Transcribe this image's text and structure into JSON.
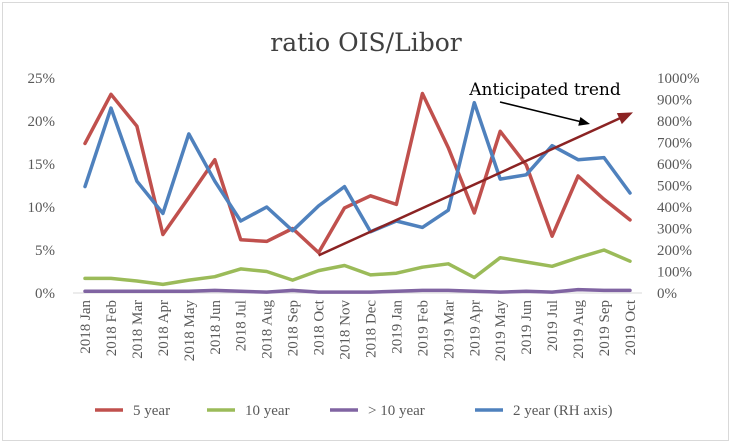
{
  "chart_data": {
    "type": "line",
    "title": "ratio OIS/Libor",
    "categories": [
      "2018 Jan",
      "2018 Feb",
      "2018 Mar",
      "2018 Apr",
      "2018 May",
      "2018 Jun",
      "2018 Jul",
      "2018 Aug",
      "2018 Sep",
      "2018 Oct",
      "2018 Nov",
      "2018 Dec",
      "2019 Jan",
      "2019 Feb",
      "2019 Mar",
      "2019 Apr",
      "2019 May",
      "2019 Jun",
      "2019 Jul",
      "2019 Aug",
      "2019 Sep",
      "2019 Oct"
    ],
    "y_left": {
      "ticks": [
        "0%",
        "5%",
        "10%",
        "15%",
        "20%",
        "25%"
      ],
      "ylim": [
        0,
        25
      ]
    },
    "y_right": {
      "ticks": [
        "0%",
        "100%",
        "200%",
        "300%",
        "400%",
        "500%",
        "600%",
        "700%",
        "800%",
        "900%",
        "1000%"
      ],
      "ylim": [
        0,
        1000
      ]
    },
    "series": [
      {
        "name": "5 year",
        "axis": "left",
        "color": "#c0504d",
        "values": [
          17.4,
          23.1,
          19.4,
          6.8,
          11.1,
          15.5,
          6.2,
          6.0,
          7.5,
          4.7,
          9.9,
          11.3,
          10.3,
          23.2,
          16.9,
          9.3,
          18.8,
          14.9,
          6.6,
          13.6,
          10.9,
          8.5
        ]
      },
      {
        "name": "10 year",
        "axis": "left",
        "color": "#9bbb59",
        "values": [
          1.7,
          1.7,
          1.4,
          1.0,
          1.5,
          1.9,
          2.8,
          2.5,
          1.5,
          2.6,
          3.2,
          2.1,
          2.3,
          3.0,
          3.4,
          1.8,
          4.1,
          3.6,
          3.1,
          4.1,
          5.0,
          3.7
        ]
      },
      {
        "name": "> 10 year",
        "axis": "left",
        "color": "#8064a2",
        "values": [
          0.2,
          0.2,
          0.2,
          0.2,
          0.2,
          0.3,
          0.2,
          0.1,
          0.3,
          0.1,
          0.1,
          0.1,
          0.2,
          0.3,
          0.3,
          0.2,
          0.1,
          0.2,
          0.1,
          0.4,
          0.3,
          0.3
        ]
      },
      {
        "name": "2 year (RH axis)",
        "axis": "right",
        "color": "#4f81bd",
        "values": [
          495,
          860,
          520,
          370,
          740,
          520,
          335,
          400,
          290,
          405,
          495,
          285,
          335,
          305,
          385,
          885,
          530,
          550,
          685,
          620,
          630,
          465
        ]
      }
    ],
    "annotation": {
      "text": "Anticipated trend",
      "color": "#000000",
      "trend_color": "#8b2323",
      "trend_start": {
        "category": "2018 Oct",
        "value_right": 175
      },
      "trend_end": {
        "category": "2019 Oct",
        "value_right": 840
      }
    },
    "grid": false,
    "legend_position": "bottom"
  }
}
